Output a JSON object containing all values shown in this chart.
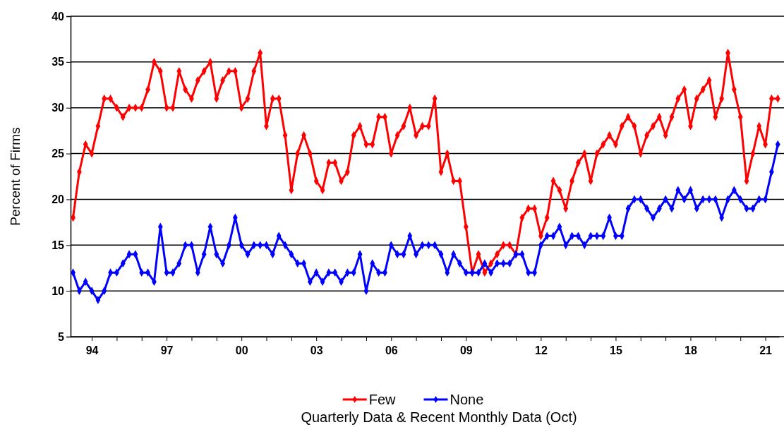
{
  "chart_data": {
    "type": "line",
    "ylabel": "Percent of Firms",
    "annotations": [
      "Quarterly Data & Recent Monthly Data (Oct)"
    ],
    "x": [
      1993.25,
      1993.5,
      1993.75,
      1994,
      1994.25,
      1994.5,
      1994.75,
      1995,
      1995.25,
      1995.5,
      1995.75,
      1996,
      1996.25,
      1996.5,
      1996.75,
      1997,
      1997.25,
      1997.5,
      1997.75,
      1998,
      1998.25,
      1998.5,
      1998.75,
      1999,
      1999.25,
      1999.5,
      1999.75,
      2000,
      2000.25,
      2000.5,
      2000.75,
      2001,
      2001.25,
      2001.5,
      2001.75,
      2002,
      2002.25,
      2002.5,
      2002.75,
      2003,
      2003.25,
      2003.5,
      2003.75,
      2004,
      2004.25,
      2004.5,
      2004.75,
      2005,
      2005.25,
      2005.5,
      2005.75,
      2006,
      2006.25,
      2006.5,
      2006.75,
      2007,
      2007.25,
      2007.5,
      2007.75,
      2008,
      2008.25,
      2008.5,
      2008.75,
      2009,
      2009.25,
      2009.5,
      2009.75,
      2010,
      2010.25,
      2010.5,
      2010.75,
      2011,
      2011.25,
      2011.5,
      2011.75,
      2012,
      2012.25,
      2012.5,
      2012.75,
      2013,
      2013.25,
      2013.5,
      2013.75,
      2014,
      2014.25,
      2014.5,
      2014.75,
      2015,
      2015.25,
      2015.5,
      2015.75,
      2016,
      2016.25,
      2016.5,
      2016.75,
      2017,
      2017.25,
      2017.5,
      2017.75,
      2018,
      2018.25,
      2018.5,
      2018.75,
      2019,
      2019.25,
      2019.5,
      2019.75,
      2020,
      2020.25,
      2020.5,
      2020.75,
      2021,
      2021.25,
      2021.5
    ],
    "series": [
      {
        "name": "Few",
        "color": "#ff0000",
        "values": [
          18,
          23,
          26,
          25,
          28,
          31,
          31,
          30,
          29,
          30,
          30,
          30,
          32,
          35,
          34,
          30,
          30,
          34,
          32,
          31,
          33,
          34,
          35,
          31,
          33,
          34,
          34,
          30,
          31,
          34,
          36,
          28,
          31,
          31,
          27,
          21,
          25,
          27,
          25,
          22,
          21,
          24,
          24,
          22,
          23,
          27,
          28,
          26,
          26,
          29,
          29,
          25,
          27,
          28,
          30,
          27,
          28,
          28,
          31,
          23,
          25,
          22,
          22,
          17,
          12,
          14,
          12,
          13,
          14,
          15,
          15,
          14,
          18,
          19,
          19,
          16,
          18,
          22,
          21,
          19,
          22,
          24,
          25,
          22,
          25,
          26,
          27,
          26,
          28,
          29,
          28,
          25,
          27,
          28,
          29,
          27,
          29,
          31,
          32,
          28,
          31,
          32,
          33,
          29,
          31,
          36,
          32,
          29,
          22,
          25,
          28,
          26,
          31,
          31
        ]
      },
      {
        "name": "None",
        "color": "#0000ff",
        "values": [
          12,
          10,
          11,
          10,
          9,
          10,
          12,
          12,
          13,
          14,
          14,
          12,
          12,
          11,
          17,
          12,
          12,
          13,
          15,
          15,
          12,
          14,
          17,
          14,
          13,
          15,
          18,
          15,
          14,
          15,
          15,
          15,
          14,
          16,
          15,
          14,
          13,
          13,
          11,
          12,
          11,
          12,
          12,
          11,
          12,
          12,
          14,
          10,
          13,
          12,
          12,
          15,
          14,
          14,
          16,
          14,
          15,
          15,
          15,
          14,
          12,
          14,
          13,
          12,
          12,
          12,
          13,
          12,
          13,
          13,
          13,
          14,
          14,
          12,
          12,
          15,
          16,
          16,
          17,
          15,
          16,
          16,
          15,
          16,
          16,
          16,
          18,
          16,
          16,
          19,
          20,
          20,
          19,
          18,
          19,
          20,
          19,
          21,
          20,
          21,
          19,
          20,
          20,
          20,
          18,
          20,
          21,
          20,
          19,
          19,
          20,
          20,
          23,
          26
        ]
      }
    ],
    "xlim": [
      1993.15,
      2021.55
    ],
    "xticks": [
      {
        "value": 1994,
        "label": "94"
      },
      {
        "value": 1995,
        "label": null
      },
      {
        "value": 1996,
        "label": null
      },
      {
        "value": 1997,
        "label": "97"
      },
      {
        "value": 1998,
        "label": null
      },
      {
        "value": 1999,
        "label": null
      },
      {
        "value": 2000,
        "label": "00"
      },
      {
        "value": 2001,
        "label": null
      },
      {
        "value": 2002,
        "label": null
      },
      {
        "value": 2003,
        "label": "03"
      },
      {
        "value": 2004,
        "label": null
      },
      {
        "value": 2005,
        "label": null
      },
      {
        "value": 2006,
        "label": "06"
      },
      {
        "value": 2007,
        "label": null
      },
      {
        "value": 2008,
        "label": null
      },
      {
        "value": 2009,
        "label": "09"
      },
      {
        "value": 2010,
        "label": null
      },
      {
        "value": 2011,
        "label": null
      },
      {
        "value": 2012,
        "label": "12"
      },
      {
        "value": 2013,
        "label": null
      },
      {
        "value": 2014,
        "label": null
      },
      {
        "value": 2015,
        "label": "15"
      },
      {
        "value": 2016,
        "label": null
      },
      {
        "value": 2017,
        "label": null
      },
      {
        "value": 2018,
        "label": "18"
      },
      {
        "value": 2019,
        "label": null
      },
      {
        "value": 2020,
        "label": null
      },
      {
        "value": 2021,
        "label": "21"
      }
    ],
    "ylim": [
      5,
      40
    ],
    "yticks": [
      5,
      10,
      15,
      20,
      25,
      30,
      35,
      40
    ],
    "grid": "y",
    "legend": "bottom",
    "marker": "diamond",
    "line_style": "solid"
  }
}
